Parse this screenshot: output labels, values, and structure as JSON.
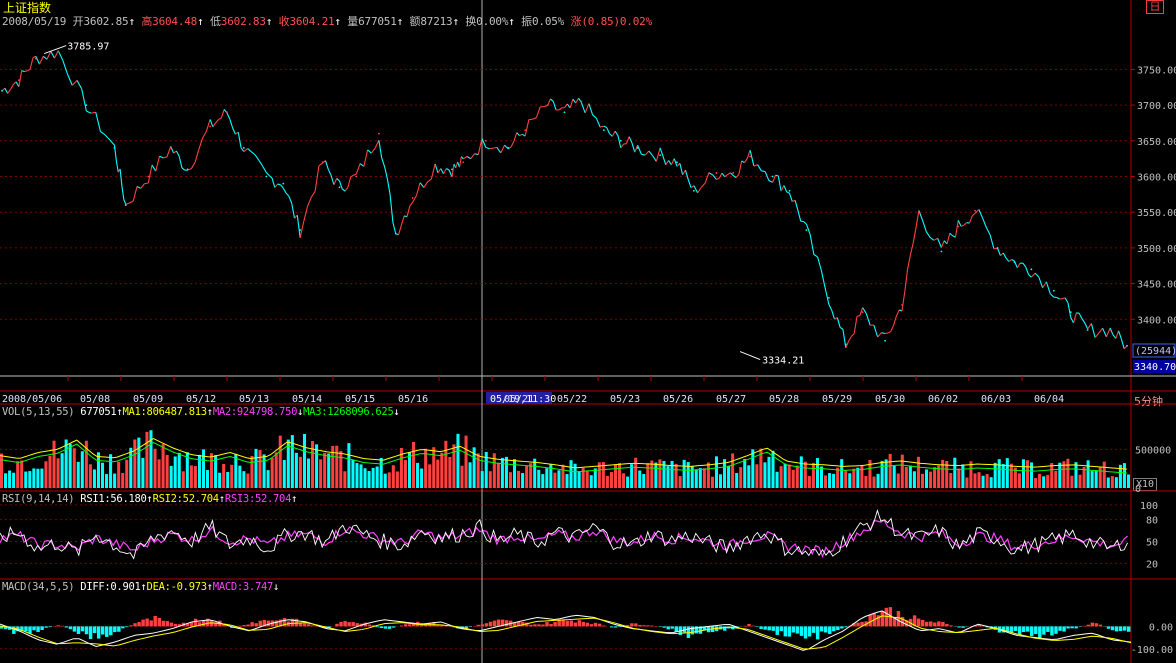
{
  "header": {
    "title": "上证指数",
    "date": "2008/05/19",
    "open_label": "开",
    "open": "3602.85",
    "high_label": "高",
    "high": "3604.48",
    "low_label": "低",
    "low": "3602.83",
    "close_label": "收",
    "close": "3604.21",
    "volume_label": "量",
    "volume": "677051",
    "amount_label": "额",
    "amount": "87213",
    "turnover_label": "换",
    "turnover": "0.00%",
    "amplitude_label": "振",
    "amplitude": "0.05%",
    "change_label": "涨",
    "change": "(0.85)0.02%"
  },
  "period_button": "日",
  "unit_label": "5分钟",
  "vol_multiplier": "X10",
  "vol_header": {
    "name": "VOL(5,13,55)",
    "value": "677051",
    "ma1": "MA1:806487.813",
    "ma2": "MA2:924798.750",
    "ma3": "MA3:1268096.625"
  },
  "rsi_header": {
    "name": "RSI(9,14,14)",
    "rsi1": "RSI1:56.180",
    "rsi2": "RSI2:52.704",
    "rsi3": "RSI3:52.704"
  },
  "macd_header": {
    "name": "MACD(34,5,5)",
    "diff": "DIFF:0.901",
    "dea": "DEA:-0.973",
    "macd": "MACD:3.747"
  },
  "chart_data": [
    {
      "type": "line",
      "panel": "price",
      "title": "",
      "x_tick_labels": [
        "2008/05/06",
        "05/08",
        "05/09",
        "05/12",
        "05/13",
        "05/14",
        "05/15",
        "05/16",
        "05/19,11:30",
        "05/21",
        "05/22",
        "05/23",
        "05/26",
        "05/27",
        "05/28",
        "05/29",
        "05/30",
        "06/02",
        "06/03",
        "06/04"
      ],
      "y_ticks": [
        3400,
        3450,
        3500,
        3550,
        3600,
        3650,
        3700,
        3750
      ],
      "ylim": [
        3322,
        3808
      ],
      "grid": true,
      "annotations": {
        "max_label": "3785.97",
        "min_label": "3334.21"
      },
      "right_badges": {
        "count": "(25944)",
        "last": "3340.70"
      },
      "crosshair_label": "05/19,11:30",
      "x": [
        0,
        0.3,
        0.6,
        1.0,
        1.5,
        2.0,
        2.2,
        2.6,
        3.0,
        3.3,
        3.7,
        4.0,
        4.3,
        4.7,
        5.0,
        5.3,
        5.7,
        6.0,
        6.3,
        6.7,
        7.0,
        7.3,
        7.7,
        8.0,
        8.2,
        8.6,
        9.0,
        9.3,
        9.7,
        10.0,
        10.3,
        10.7,
        11.0,
        11.3,
        11.7,
        12.0,
        12.3,
        12.7,
        13.0,
        13.3,
        13.7,
        14.0,
        14.3,
        14.7,
        15.0,
        15.3,
        15.7,
        16.0,
        16.3,
        16.7,
        17.0,
        17.3,
        17.7,
        18.0,
        18.3,
        18.7,
        19.0,
        19.3,
        19.7,
        20.0
      ],
      "series": [
        {
          "values": [
            3720,
            3735,
            3765,
            3775,
            3700,
            3640,
            3560,
            3600,
            3640,
            3610,
            3670,
            3690,
            3640,
            3600,
            3590,
            3525,
            3620,
            3585,
            3600,
            3660,
            3520,
            3570,
            3615,
            3610,
            3620,
            3650,
            3640,
            3665,
            3700,
            3690,
            3705,
            3665,
            3650,
            3640,
            3630,
            3620,
            3580,
            3605,
            3605,
            3628,
            3600,
            3580,
            3525,
            3430,
            3365,
            3410,
            3370,
            3420,
            3550,
            3495,
            3530,
            3552,
            3500,
            3480,
            3470,
            3440,
            3410,
            3385,
            3385,
            3363
          ]
        }
      ]
    },
    {
      "type": "bar",
      "panel": "volume",
      "title": "",
      "y_ticks": [
        0,
        500000
      ],
      "ylim": [
        0,
        880000
      ],
      "series": [
        {
          "name": "VOL",
          "values": [
            420000,
            380000,
            460000,
            500000,
            620000,
            410000,
            390000,
            480000,
            640000,
            520000,
            430000,
            400000,
            460000,
            380000,
            410000,
            600000,
            520000,
            470000,
            440000,
            380000,
            360000,
            440000,
            500000,
            470000,
            540000,
            410000,
            370000,
            350000,
            330000,
            300000,
            260000,
            280000,
            300000,
            320000,
            310000,
            290000,
            280000,
            300000,
            330000,
            420000,
            520000,
            350000,
            310000,
            300000,
            280000,
            290000,
            330000,
            350000,
            320000,
            300000,
            290000,
            310000,
            300000,
            280000,
            270000,
            290000,
            300000,
            280000,
            260000,
            240000
          ]
        }
      ]
    },
    {
      "type": "line",
      "panel": "rsi",
      "title": "",
      "y_ticks": [
        20,
        50,
        80,
        100
      ],
      "ylim": [
        0,
        100
      ],
      "series": [
        {
          "name": "RSI1",
          "values": [
            55,
            62,
            40,
            48,
            35,
            60,
            45,
            30,
            55,
            65,
            50,
            70,
            45,
            55,
            40,
            60,
            62,
            48,
            72,
            60,
            50,
            45,
            65,
            55,
            60,
            70,
            50,
            60,
            48,
            62,
            55,
            70,
            50,
            45,
            60,
            52,
            58,
            48,
            40,
            55,
            62,
            40,
            35,
            30,
            50,
            70,
            85,
            60,
            55,
            65,
            42,
            60,
            55,
            38,
            45,
            52,
            60,
            48,
            40,
            55
          ]
        },
        {
          "name": "RSI2",
          "values": [
            55,
            58,
            45,
            46,
            40,
            55,
            47,
            38,
            52,
            60,
            52,
            65,
            50,
            54,
            45,
            57,
            60,
            50,
            68,
            60,
            52,
            48,
            62,
            55,
            58,
            66,
            52,
            58,
            50,
            60,
            55,
            66,
            52,
            48,
            58,
            53,
            56,
            50,
            44,
            54,
            58,
            44,
            40,
            36,
            50,
            65,
            78,
            62,
            56,
            62,
            46,
            58,
            54,
            42,
            46,
            52,
            58,
            50,
            44,
            52
          ]
        }
      ]
    },
    {
      "type": "bar",
      "panel": "macd",
      "title": "",
      "y_ticks": [
        0,
        -100
      ],
      "ylim": [
        -150,
        140
      ],
      "series": [
        {
          "name": "MACD",
          "values": [
            -10,
            -40,
            -20,
            10,
            -30,
            -60,
            -30,
            20,
            40,
            10,
            30,
            45,
            -10,
            20,
            35,
            40,
            10,
            -10,
            30,
            20,
            -20,
            10,
            25,
            10,
            -15,
            10,
            30,
            20,
            10,
            25,
            35,
            15,
            -10,
            15,
            5,
            -20,
            -50,
            -30,
            -15,
            10,
            -25,
            -40,
            -60,
            -40,
            -10,
            40,
            90,
            60,
            30,
            20,
            -10,
            10,
            -25,
            -35,
            -50,
            -30,
            -10,
            20,
            -20,
            -30
          ]
        },
        {
          "name": "DIFF",
          "values": [
            10,
            -20,
            -60,
            -80,
            -50,
            -90,
            -70,
            -40,
            -30,
            -10,
            20,
            30,
            0,
            -20,
            10,
            30,
            20,
            -10,
            -20,
            10,
            30,
            20,
            10,
            20,
            -10,
            -20,
            0,
            20,
            40,
            30,
            50,
            40,
            10,
            -10,
            -20,
            -30,
            -10,
            0,
            10,
            -20,
            -50,
            -80,
            -110,
            -60,
            -20,
            40,
            70,
            20,
            -20,
            -10,
            -30,
            10,
            -10,
            -40,
            -50,
            -60,
            -40,
            -30,
            -60,
            -70
          ]
        }
      ]
    }
  ],
  "colors": {
    "up": "#ff4040",
    "down": "#00ffff",
    "grid": "#800000",
    "axis": "#b00000",
    "ma1": "#ffffff",
    "ma2": "#ffff00",
    "ma3": "#ff40ff",
    "ma_vol3": "#00ff00"
  }
}
